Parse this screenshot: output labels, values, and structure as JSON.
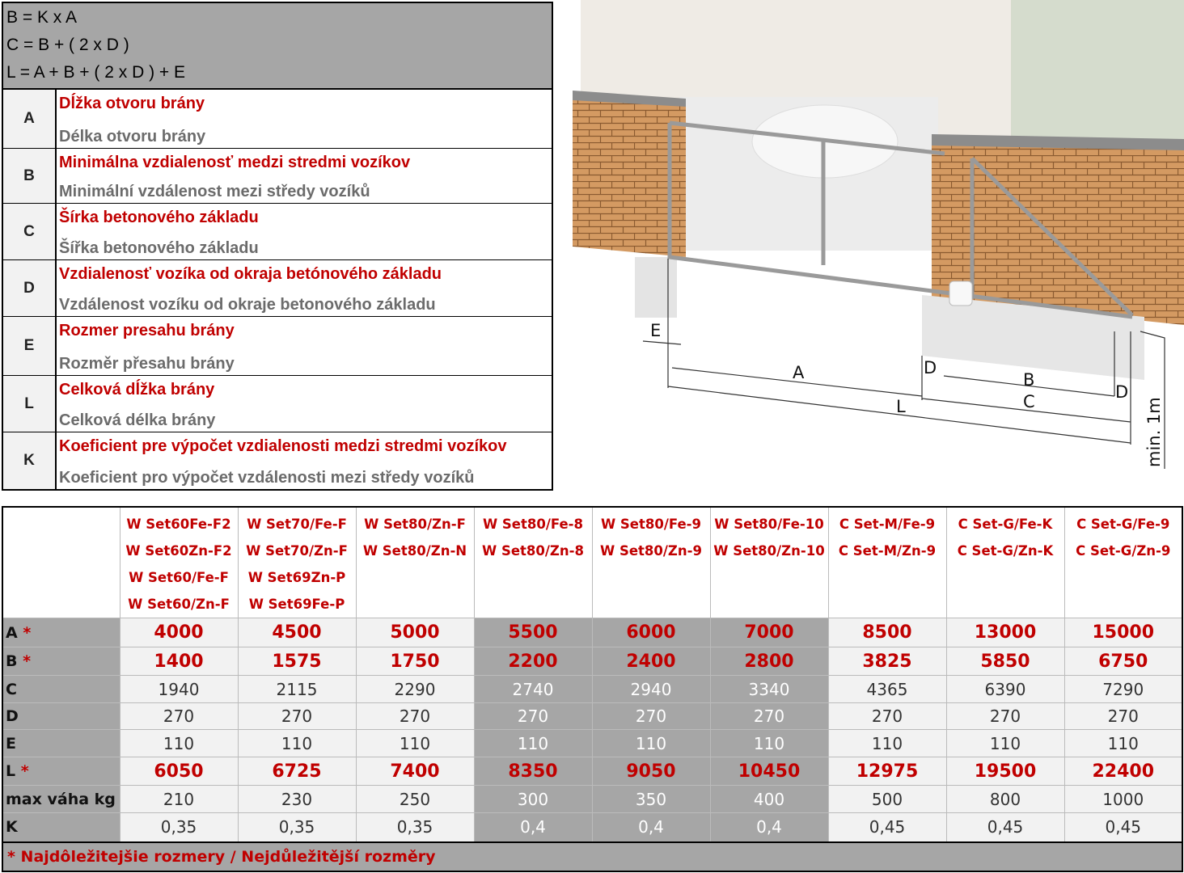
{
  "formulas": [
    "B = K x A",
    "C = B + ( 2 x D )",
    "L = A + B + ( 2 x D ) + E"
  ],
  "legend": [
    {
      "letter": "A",
      "sk": "Dĺžka otvoru brány",
      "cz": "Délka otvoru brány"
    },
    {
      "letter": "B",
      "sk": "Minimálna vzdialenosť medzi stredmi vozíkov",
      "cz": "Minimální vzdálenost mezi středy vozíků"
    },
    {
      "letter": "C",
      "sk": "Šírka betonového základu",
      "cz": "Šířka betonového základu"
    },
    {
      "letter": "D",
      "sk": "Vzdialenosť vozíka od okraja betónového základu",
      "cz": "Vzdálenost vozíku od okraje betonového základu"
    },
    {
      "letter": "E",
      "sk": "Rozmer presahu brány",
      "cz": "Rozměr přesahu brány"
    },
    {
      "letter": "L",
      "sk": "Celková dĺžka brány",
      "cz": "Celková délka brány"
    },
    {
      "letter": "K",
      "sk": "Koeficient pre výpočet vzdialenosti medzi stredmi vozíkov",
      "cz": "Koeficient pro výpočet vzdálenosti mezi středy vozíků"
    }
  ],
  "diagram": {
    "labels": {
      "E": "E",
      "A": "A",
      "L": "L",
      "D1": "D",
      "B": "B",
      "C": "C",
      "D2": "D",
      "height": "min. 1m"
    }
  },
  "table": {
    "columns": [
      [
        "W Set60Fe-F2",
        "W Set60Zn-F2",
        "W Set60/Fe-F",
        "W Set60/Zn-F"
      ],
      [
        "W Set70/Fe-F",
        "W Set70/Zn-F",
        "W Set69Zn-P",
        "W Set69Fe-P"
      ],
      [
        "W Set80/Zn-F",
        "W Set80/Zn-N"
      ],
      [
        "W Set80/Fe-8",
        "W Set80/Zn-8"
      ],
      [
        "W Set80/Fe-9",
        "W Set80/Zn-9"
      ],
      [
        "W Set80/Fe-10",
        "W Set80/Zn-10"
      ],
      [
        "C Set-M/Fe-9",
        "C Set-M/Zn-9"
      ],
      [
        "C Set-G/Fe-K",
        "C Set-G/Zn-K"
      ],
      [
        "C Set-G/Fe-9",
        "C Set-G/Zn-9"
      ]
    ],
    "rows": [
      {
        "label": "A",
        "star": "*",
        "values": [
          "4000",
          "4500",
          "5000",
          "5500",
          "6000",
          "7000",
          "8500",
          "13000",
          "15000"
        ]
      },
      {
        "label": "B",
        "star": "*",
        "values": [
          "1400",
          "1575",
          "1750",
          "2200",
          "2400",
          "2800",
          "3825",
          "5850",
          "6750"
        ]
      },
      {
        "label": "C",
        "star": "",
        "values": [
          "1940",
          "2115",
          "2290",
          "2740",
          "2940",
          "3340",
          "4365",
          "6390",
          "7290"
        ]
      },
      {
        "label": "D",
        "star": "",
        "values": [
          "270",
          "270",
          "270",
          "270",
          "270",
          "270",
          "270",
          "270",
          "270"
        ]
      },
      {
        "label": "E",
        "star": "",
        "values": [
          "110",
          "110",
          "110",
          "110",
          "110",
          "110",
          "110",
          "110",
          "110"
        ]
      },
      {
        "label": "L",
        "star": "*",
        "values": [
          "6050",
          "6725",
          "7400",
          "8350",
          "9050",
          "10450",
          "12975",
          "19500",
          "22400"
        ]
      },
      {
        "label": "max váha kg",
        "star": "",
        "values": [
          "210",
          "230",
          "250",
          "300",
          "350",
          "400",
          "500",
          "800",
          "1000"
        ]
      },
      {
        "label": "K",
        "star": "",
        "values": [
          "0,35",
          "0,35",
          "0,35",
          "0,4",
          "0,4",
          "0,4",
          "0,45",
          "0,45",
          "0,45"
        ]
      }
    ],
    "footnote": "* Najdôležitejšie rozmery / Nejdůležitější rozměry"
  },
  "colors": {
    "red": "#c00000",
    "grey": "#a6a6a6",
    "light": "#f2f2f2"
  }
}
